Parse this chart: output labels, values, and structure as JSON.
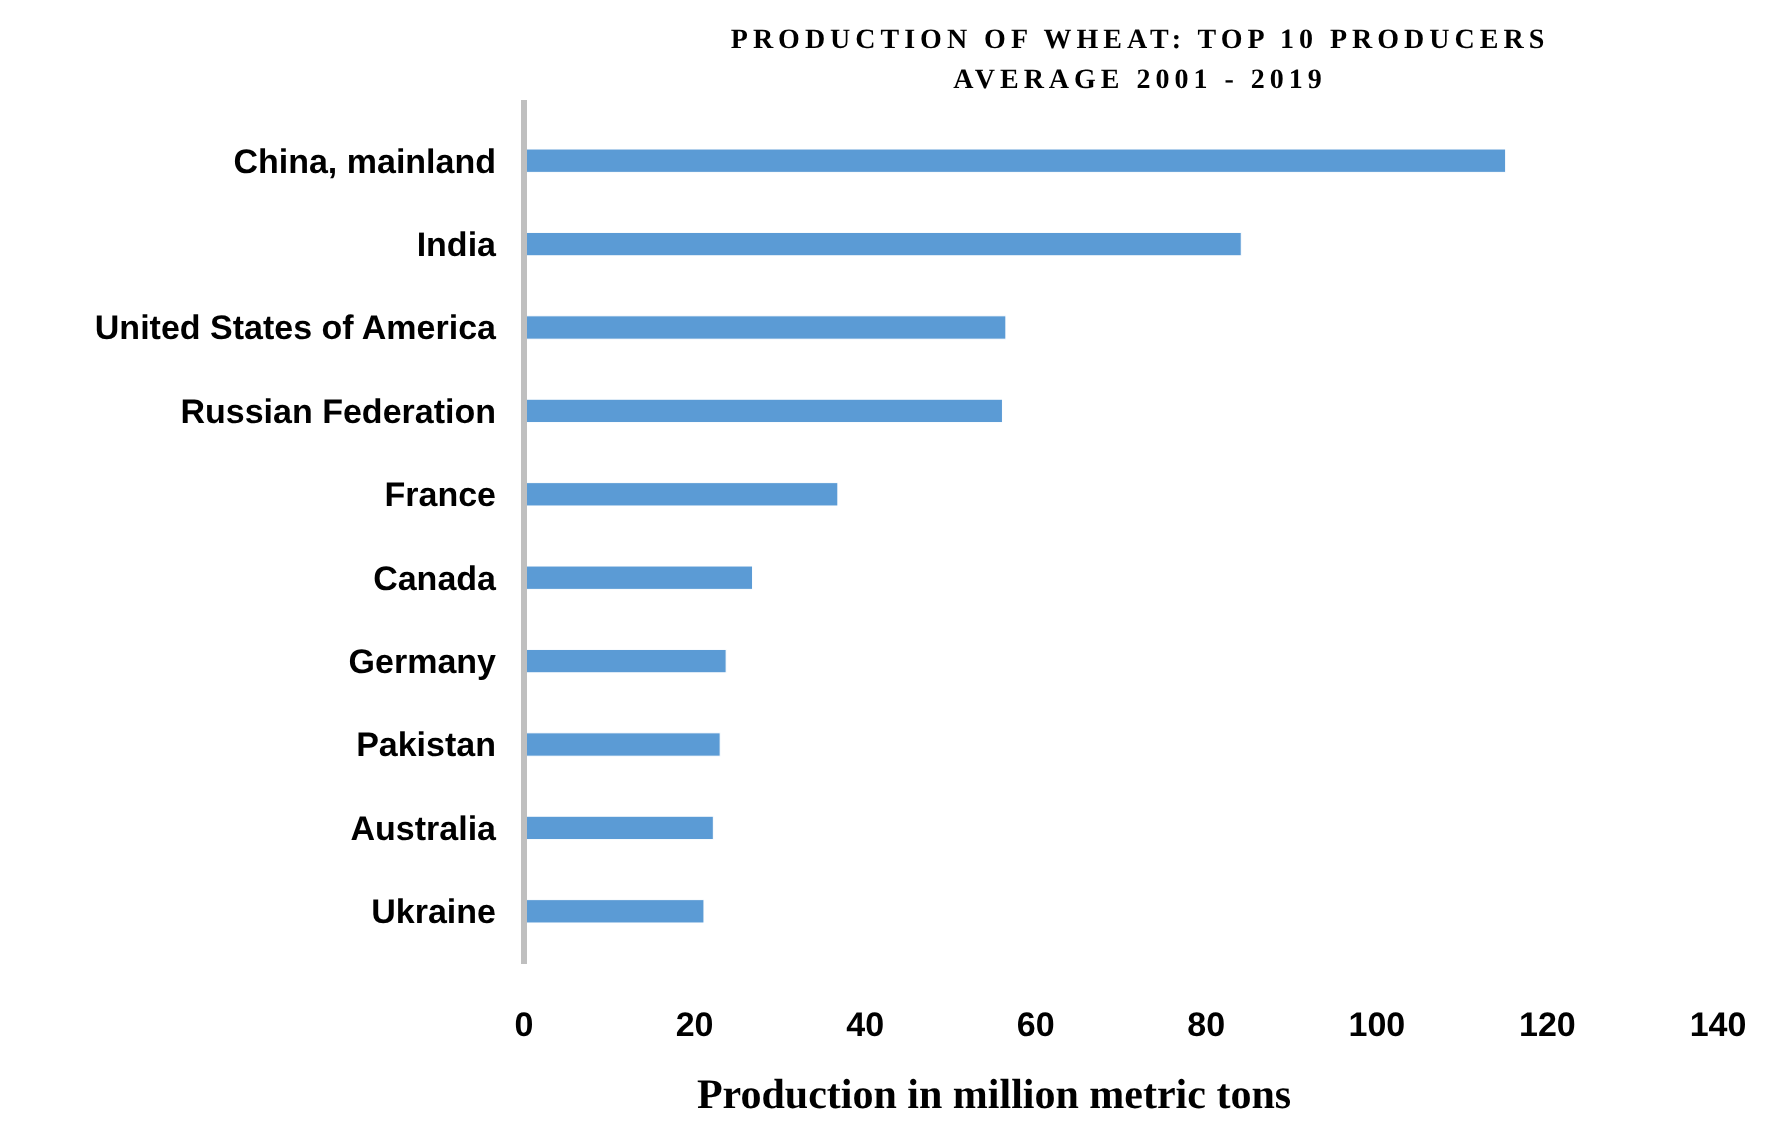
{
  "chart_data": {
    "type": "bar",
    "orientation": "horizontal",
    "title": "PRODUCTION OF WHEAT: TOP 10 PRODUCERS",
    "subtitle": "AVERAGE 2001 - 2019",
    "xlabel": "Production in million metric tons",
    "categories": [
      "China, mainland",
      "India",
      "United States of America",
      "Russian Federation",
      "France",
      "Canada",
      "Germany",
      "Pakistan",
      "Australia",
      "Ukraine"
    ],
    "values": [
      115.1,
      84.1,
      56.5,
      56.1,
      36.8,
      26.8,
      23.7,
      23.0,
      22.2,
      21.1
    ],
    "color": "#5b9bd5",
    "xlim": [
      0,
      140
    ],
    "xticks": [
      0,
      20,
      40,
      60,
      80,
      100,
      120,
      140
    ],
    "grid": false
  }
}
